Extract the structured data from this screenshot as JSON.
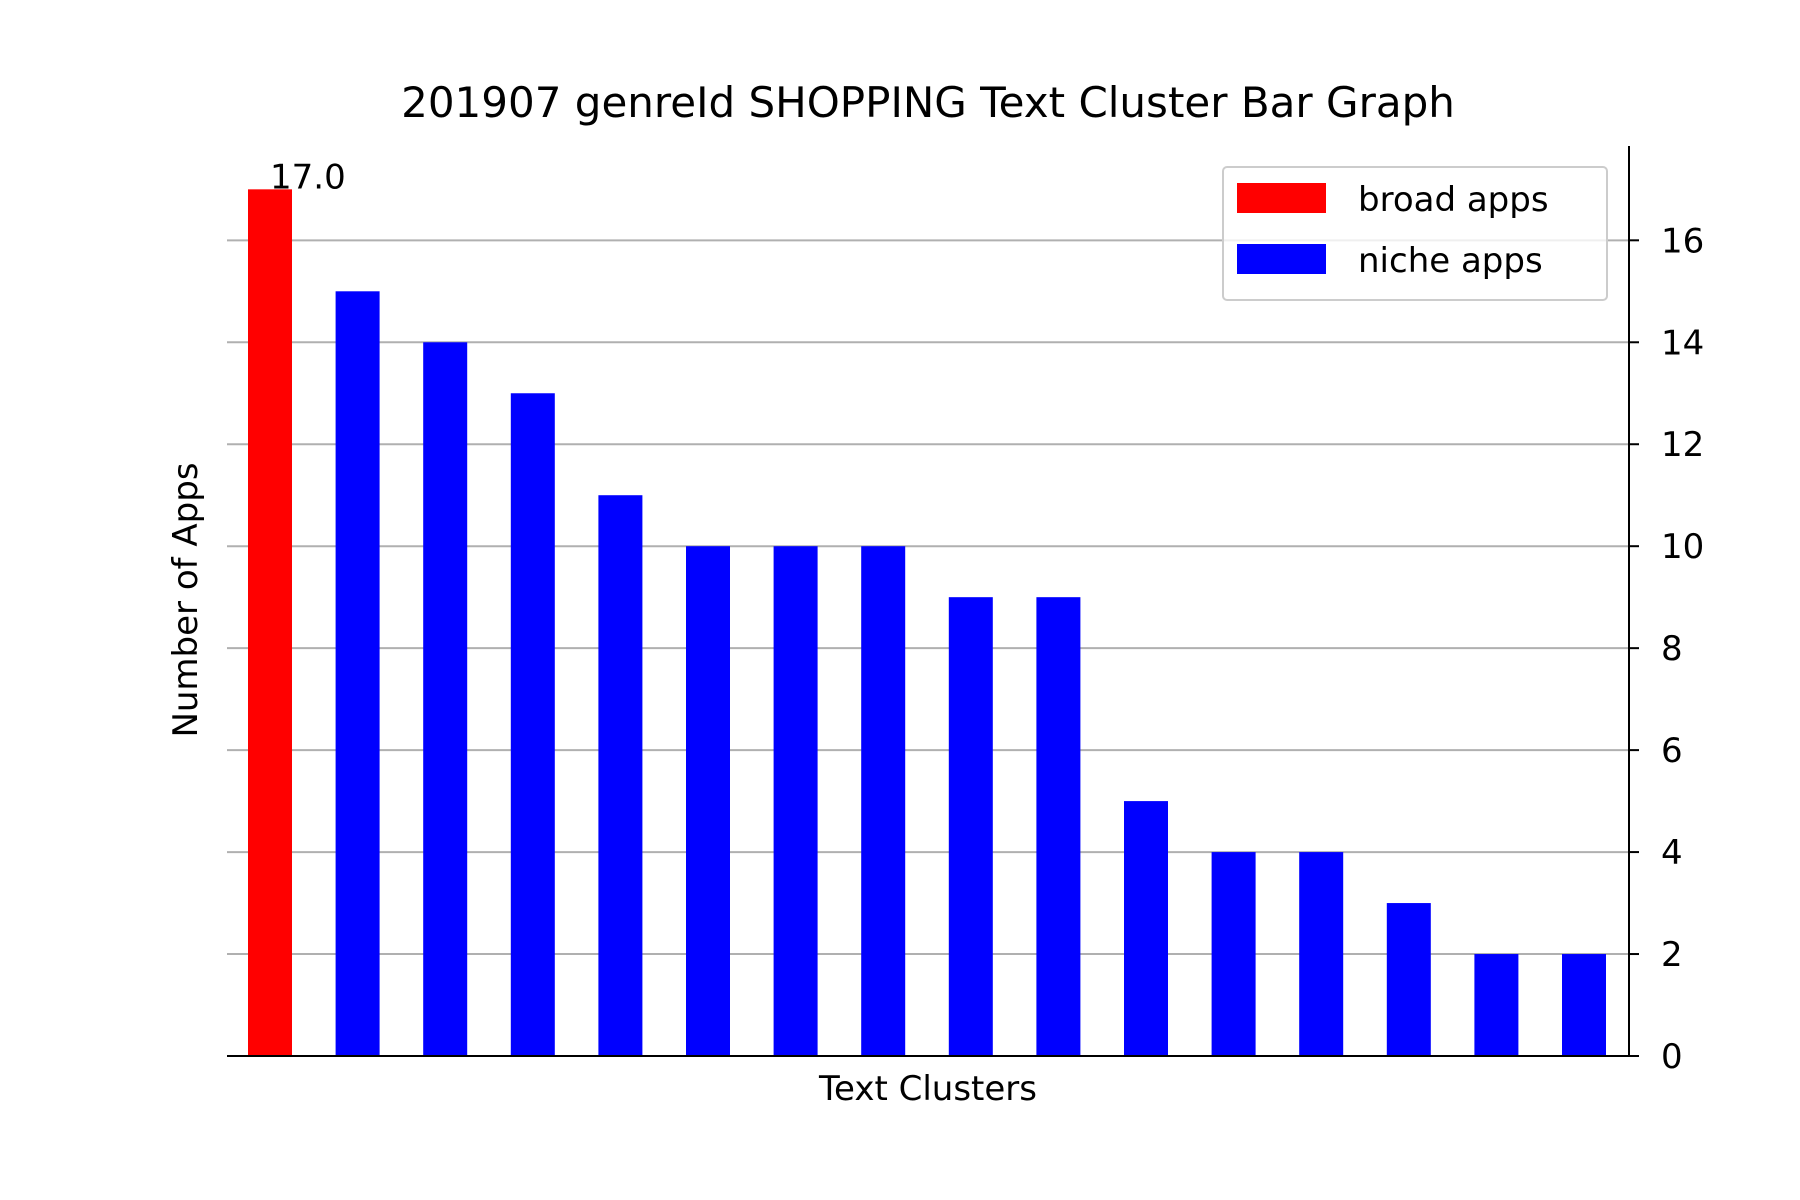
{
  "chart_data": {
    "type": "bar",
    "title": "201907 genreId SHOPPING Text Cluster Bar Graph",
    "xlabel": "Text Clusters",
    "ylabel": "Number of Apps",
    "ylim": [
      0,
      17.85
    ],
    "yticks": [
      0,
      2,
      4,
      6,
      8,
      10,
      12,
      14,
      16
    ],
    "y_axis_side": "right",
    "grid": "horizontal",
    "legend": {
      "placement": "top-right",
      "entries": [
        {
          "label": "broad apps",
          "color": "#ff0000"
        },
        {
          "label": "niche apps",
          "color": "#0000ff"
        }
      ]
    },
    "values": [
      17,
      15,
      14,
      13,
      11,
      10,
      10,
      10,
      9,
      9,
      5,
      4,
      4,
      3,
      2,
      2
    ],
    "groups": [
      "broad",
      "niche",
      "niche",
      "niche",
      "niche",
      "niche",
      "niche",
      "niche",
      "niche",
      "niche",
      "niche",
      "niche",
      "niche",
      "niche",
      "niche",
      "niche"
    ],
    "data_labels": [
      {
        "index": 0,
        "text": "17.0"
      }
    ]
  }
}
